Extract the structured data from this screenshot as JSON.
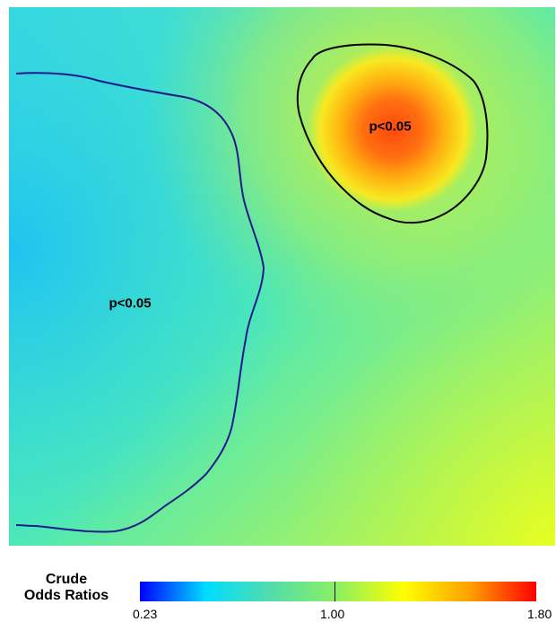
{
  "map": {
    "region_labels": {
      "northeast": "p<0.05",
      "west": "p<0.05"
    },
    "contour_colors": {
      "northeast": "#000000",
      "west": "#1b1b8c"
    },
    "surface_colors": {
      "background_mid": "#40e8c8",
      "west_low": "#20c8f0",
      "hotspot_core": "#ff5010",
      "hotspot_edge": "#f8e820",
      "southeast": "#d8f830"
    }
  },
  "legend": {
    "title_line1": "Crude",
    "title_line2": "Odds Ratios",
    "min_label": "0.23",
    "mid_label": "1.00",
    "max_label": "1.80",
    "min_value": 0.23,
    "mid_value": 1.0,
    "max_value": 1.8,
    "gradient_colors": [
      "#0000ff",
      "#00ddff",
      "#54ddaa",
      "#8cf060",
      "#ffff00",
      "#ffa000",
      "#ff0000"
    ]
  }
}
